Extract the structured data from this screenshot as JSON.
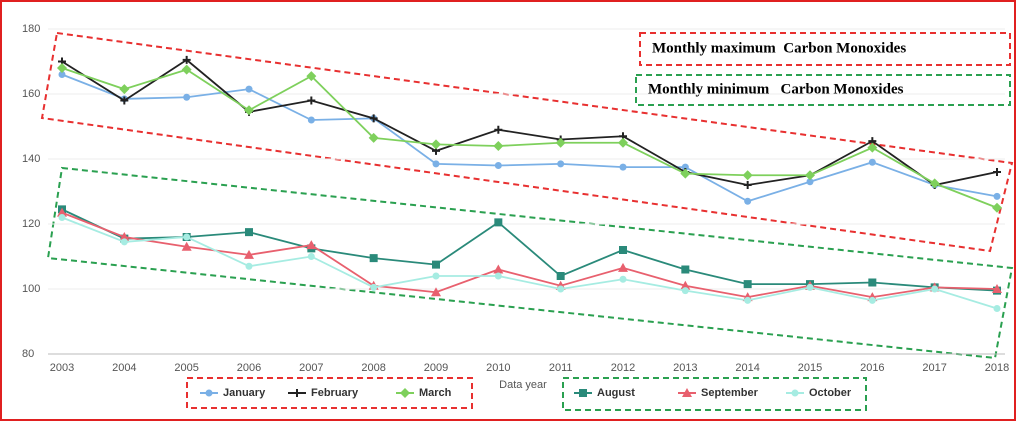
{
  "chart_data": {
    "type": "line",
    "x_label": "Data year",
    "annotations": [
      "Monthly maximum  Carbon Monoxides",
      "Monthly minimum   Carbon Monoxides"
    ],
    "categories": [
      "2003",
      "2004",
      "2005",
      "2006",
      "2007",
      "2008",
      "2009",
      "2010",
      "2011",
      "2012",
      "2013",
      "2014",
      "2015",
      "2016",
      "2017",
      "2018"
    ],
    "ylim": [
      80,
      180
    ],
    "yticks": [
      80,
      100,
      120,
      140,
      160,
      180
    ],
    "grid": true,
    "series": [
      {
        "name": "January",
        "color": "#7ab0e6",
        "marker": "circle",
        "values": [
          166,
          158.5,
          159,
          161.5,
          152,
          152.5,
          138.5,
          138,
          138.5,
          137.5,
          137.5,
          127,
          133,
          139,
          132,
          128.5
        ]
      },
      {
        "name": "February",
        "color": "#222222",
        "marker": "plus",
        "values": [
          170,
          158,
          170.5,
          154.5,
          158,
          152.5,
          142.5,
          149,
          146,
          147,
          136,
          132,
          135,
          145.5,
          132,
          136
        ]
      },
      {
        "name": "March",
        "color": "#7ed05c",
        "marker": "diamond",
        "values": [
          168,
          161.5,
          167.5,
          155,
          165.5,
          146.5,
          144.5,
          144,
          145,
          145,
          135.5,
          135,
          135,
          143.5,
          132.5,
          125
        ]
      },
      {
        "name": "August",
        "color": "#2a8a7a",
        "marker": "square",
        "values": [
          124.5,
          115.5,
          116,
          117.5,
          112.5,
          109.5,
          107.5,
          120.5,
          104,
          112,
          106,
          101.5,
          101.5,
          102,
          100.5,
          99.5
        ]
      },
      {
        "name": "September",
        "color": "#e8606e",
        "marker": "triangle",
        "values": [
          123.5,
          116,
          113,
          110.5,
          113.5,
          101,
          99,
          106,
          101,
          106.5,
          101,
          97.5,
          101,
          97.5,
          100.5,
          100
        ]
      },
      {
        "name": "October",
        "color": "#a6ece2",
        "marker": "circle",
        "values": [
          122,
          114.5,
          116,
          107,
          110,
          100.5,
          104,
          104,
          100,
          103,
          99.5,
          96.5,
          100.5,
          96.5,
          100,
          94
        ]
      }
    ]
  }
}
